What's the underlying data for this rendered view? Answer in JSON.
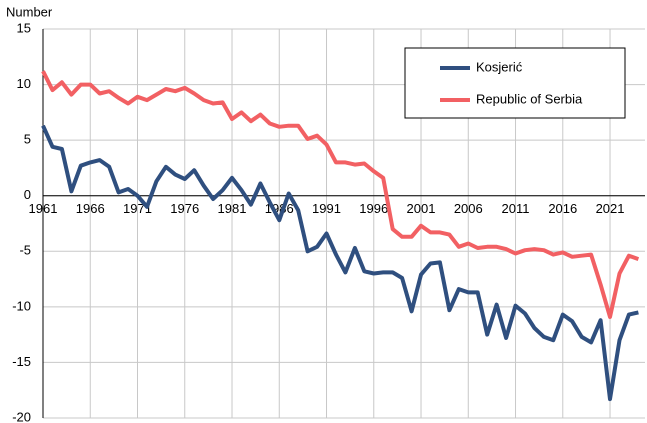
{
  "chart_data": {
    "type": "line",
    "y_label": "Number",
    "x": [
      1961,
      1962,
      1963,
      1964,
      1965,
      1966,
      1967,
      1968,
      1969,
      1970,
      1971,
      1972,
      1973,
      1974,
      1975,
      1976,
      1977,
      1978,
      1979,
      1980,
      1981,
      1982,
      1983,
      1984,
      1985,
      1986,
      1987,
      1988,
      1989,
      1990,
      1991,
      1992,
      1993,
      1994,
      1995,
      1996,
      1997,
      1998,
      1999,
      2000,
      2001,
      2002,
      2003,
      2004,
      2005,
      2006,
      2007,
      2008,
      2009,
      2010,
      2011,
      2012,
      2013,
      2014,
      2015,
      2016,
      2017,
      2018,
      2019,
      2020,
      2021,
      2022,
      2023,
      2024
    ],
    "series": [
      {
        "name": "Kosjerić",
        "color": "#2f4f7f",
        "values": [
          6.3,
          4.4,
          4.2,
          0.4,
          2.7,
          3.0,
          3.2,
          2.6,
          0.3,
          0.6,
          0.0,
          -1.0,
          1.3,
          2.6,
          1.9,
          1.5,
          2.3,
          0.9,
          -0.3,
          0.5,
          1.6,
          0.5,
          -0.8,
          1.1,
          -0.6,
          -2.2,
          0.2,
          -1.3,
          -5.0,
          -4.6,
          -3.4,
          -5.3,
          -6.9,
          -4.7,
          -6.8,
          -7.0,
          -6.9,
          -6.9,
          -7.4,
          -10.4,
          -7.1,
          -6.1,
          -6.0,
          -10.3,
          -8.4,
          -8.7,
          -8.7,
          -12.5,
          -9.8,
          -12.8,
          -9.9,
          -10.6,
          -11.9,
          -12.7,
          -13.0,
          -10.7,
          -11.3,
          -12.7,
          -13.2,
          -11.2,
          -18.3,
          -13.0,
          -10.7,
          -10.5
        ]
      },
      {
        "name": "Republic of Serbia",
        "color": "#f26063",
        "values": [
          11.2,
          9.5,
          10.2,
          9.1,
          10.0,
          10.0,
          9.2,
          9.4,
          8.8,
          8.3,
          8.9,
          8.6,
          9.1,
          9.6,
          9.4,
          9.7,
          9.2,
          8.6,
          8.3,
          8.4,
          6.9,
          7.5,
          6.7,
          7.3,
          6.5,
          6.2,
          6.3,
          6.3,
          5.1,
          5.4,
          4.6,
          3.0,
          3.0,
          2.8,
          2.9,
          2.2,
          1.6,
          -3.0,
          -3.7,
          -3.7,
          -2.7,
          -3.3,
          -3.3,
          -3.5,
          -4.6,
          -4.3,
          -4.7,
          -4.6,
          -4.6,
          -4.8,
          -5.2,
          -4.9,
          -4.8,
          -4.9,
          -5.3,
          -5.1,
          -5.5,
          -5.4,
          -5.3,
          -8.0,
          -10.9,
          -7.0,
          -5.4,
          -5.7
        ]
      }
    ],
    "xlim": [
      1961,
      2024.7
    ],
    "xticks": [
      1961,
      1966,
      1971,
      1976,
      1981,
      1986,
      1991,
      1996,
      2001,
      2006,
      2011,
      2016,
      2021
    ],
    "ylim": [
      -20,
      15
    ],
    "yticks": [
      -20,
      -15,
      -10,
      -5,
      0,
      5,
      10,
      15
    ],
    "grid": true,
    "legend": "top-right"
  }
}
